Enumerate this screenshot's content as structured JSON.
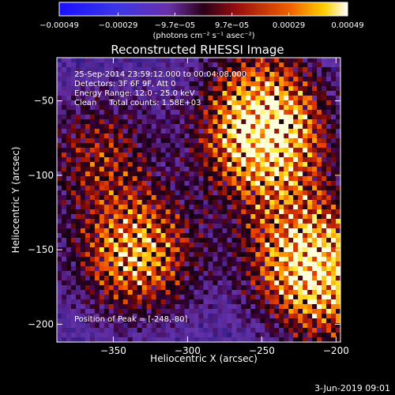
{
  "chart_data": {
    "type": "heatmap",
    "title": "Reconstructed RHESSI Image",
    "xlabel": "Heliocentric X (arcsec)",
    "ylabel": "Heliocentric Y (arcsec)",
    "xlim": [
      -388,
      -197
    ],
    "ylim": [
      -212,
      -21
    ],
    "x_ticks": [
      -350,
      -300,
      -250,
      -200
    ],
    "x_tick_labels": [
      "−350",
      "−300",
      "−250",
      "−200"
    ],
    "y_ticks": [
      -50,
      -100,
      -150,
      -200
    ],
    "y_tick_labels": [
      "−50",
      "−100",
      "−150",
      "−200"
    ],
    "colorbar": {
      "range": [
        -0.00049,
        0.00049
      ],
      "ticks": [
        -0.00049,
        -0.00029,
        -9.7e-05,
        9.7e-05,
        0.00029,
        0.00049
      ],
      "tick_labels": [
        "−0.00049",
        "−0.00029",
        "−9.7e−05",
        "9.7e−05",
        "0.00029",
        "0.00049"
      ],
      "unit_label": "(photons cm⁻² s⁻¹ asec⁻²)"
    },
    "annotations": {
      "time_range": "25-Sep-2014 23:59:12.000 to 00:04:08.000",
      "detectors": "Detectors: 3F 6F 9F, Att 0",
      "energy_range": "Energy Range: 12.0 - 25.0 keV",
      "algorithm": "Clean     Total counts: 1.58E+03",
      "peak": "Position of Peak = [-248,-80]"
    },
    "peak_position": [
      -248,
      -80
    ],
    "hot_regions": [
      {
        "x": -248,
        "y": -80,
        "intensity": 1.0
      },
      {
        "x": -335,
        "y": -152,
        "intensity": 0.9
      },
      {
        "x": -222,
        "y": -150,
        "intensity": 0.8
      },
      {
        "x": -205,
        "y": -178,
        "intensity": 0.65
      },
      {
        "x": -360,
        "y": -85,
        "intensity": 0.5
      },
      {
        "x": -250,
        "y": -45,
        "intensity": 0.55
      }
    ],
    "colors": {
      "background": "#000000",
      "text": "#ffffff"
    }
  },
  "footer_date": "3-Jun-2019 09:01"
}
